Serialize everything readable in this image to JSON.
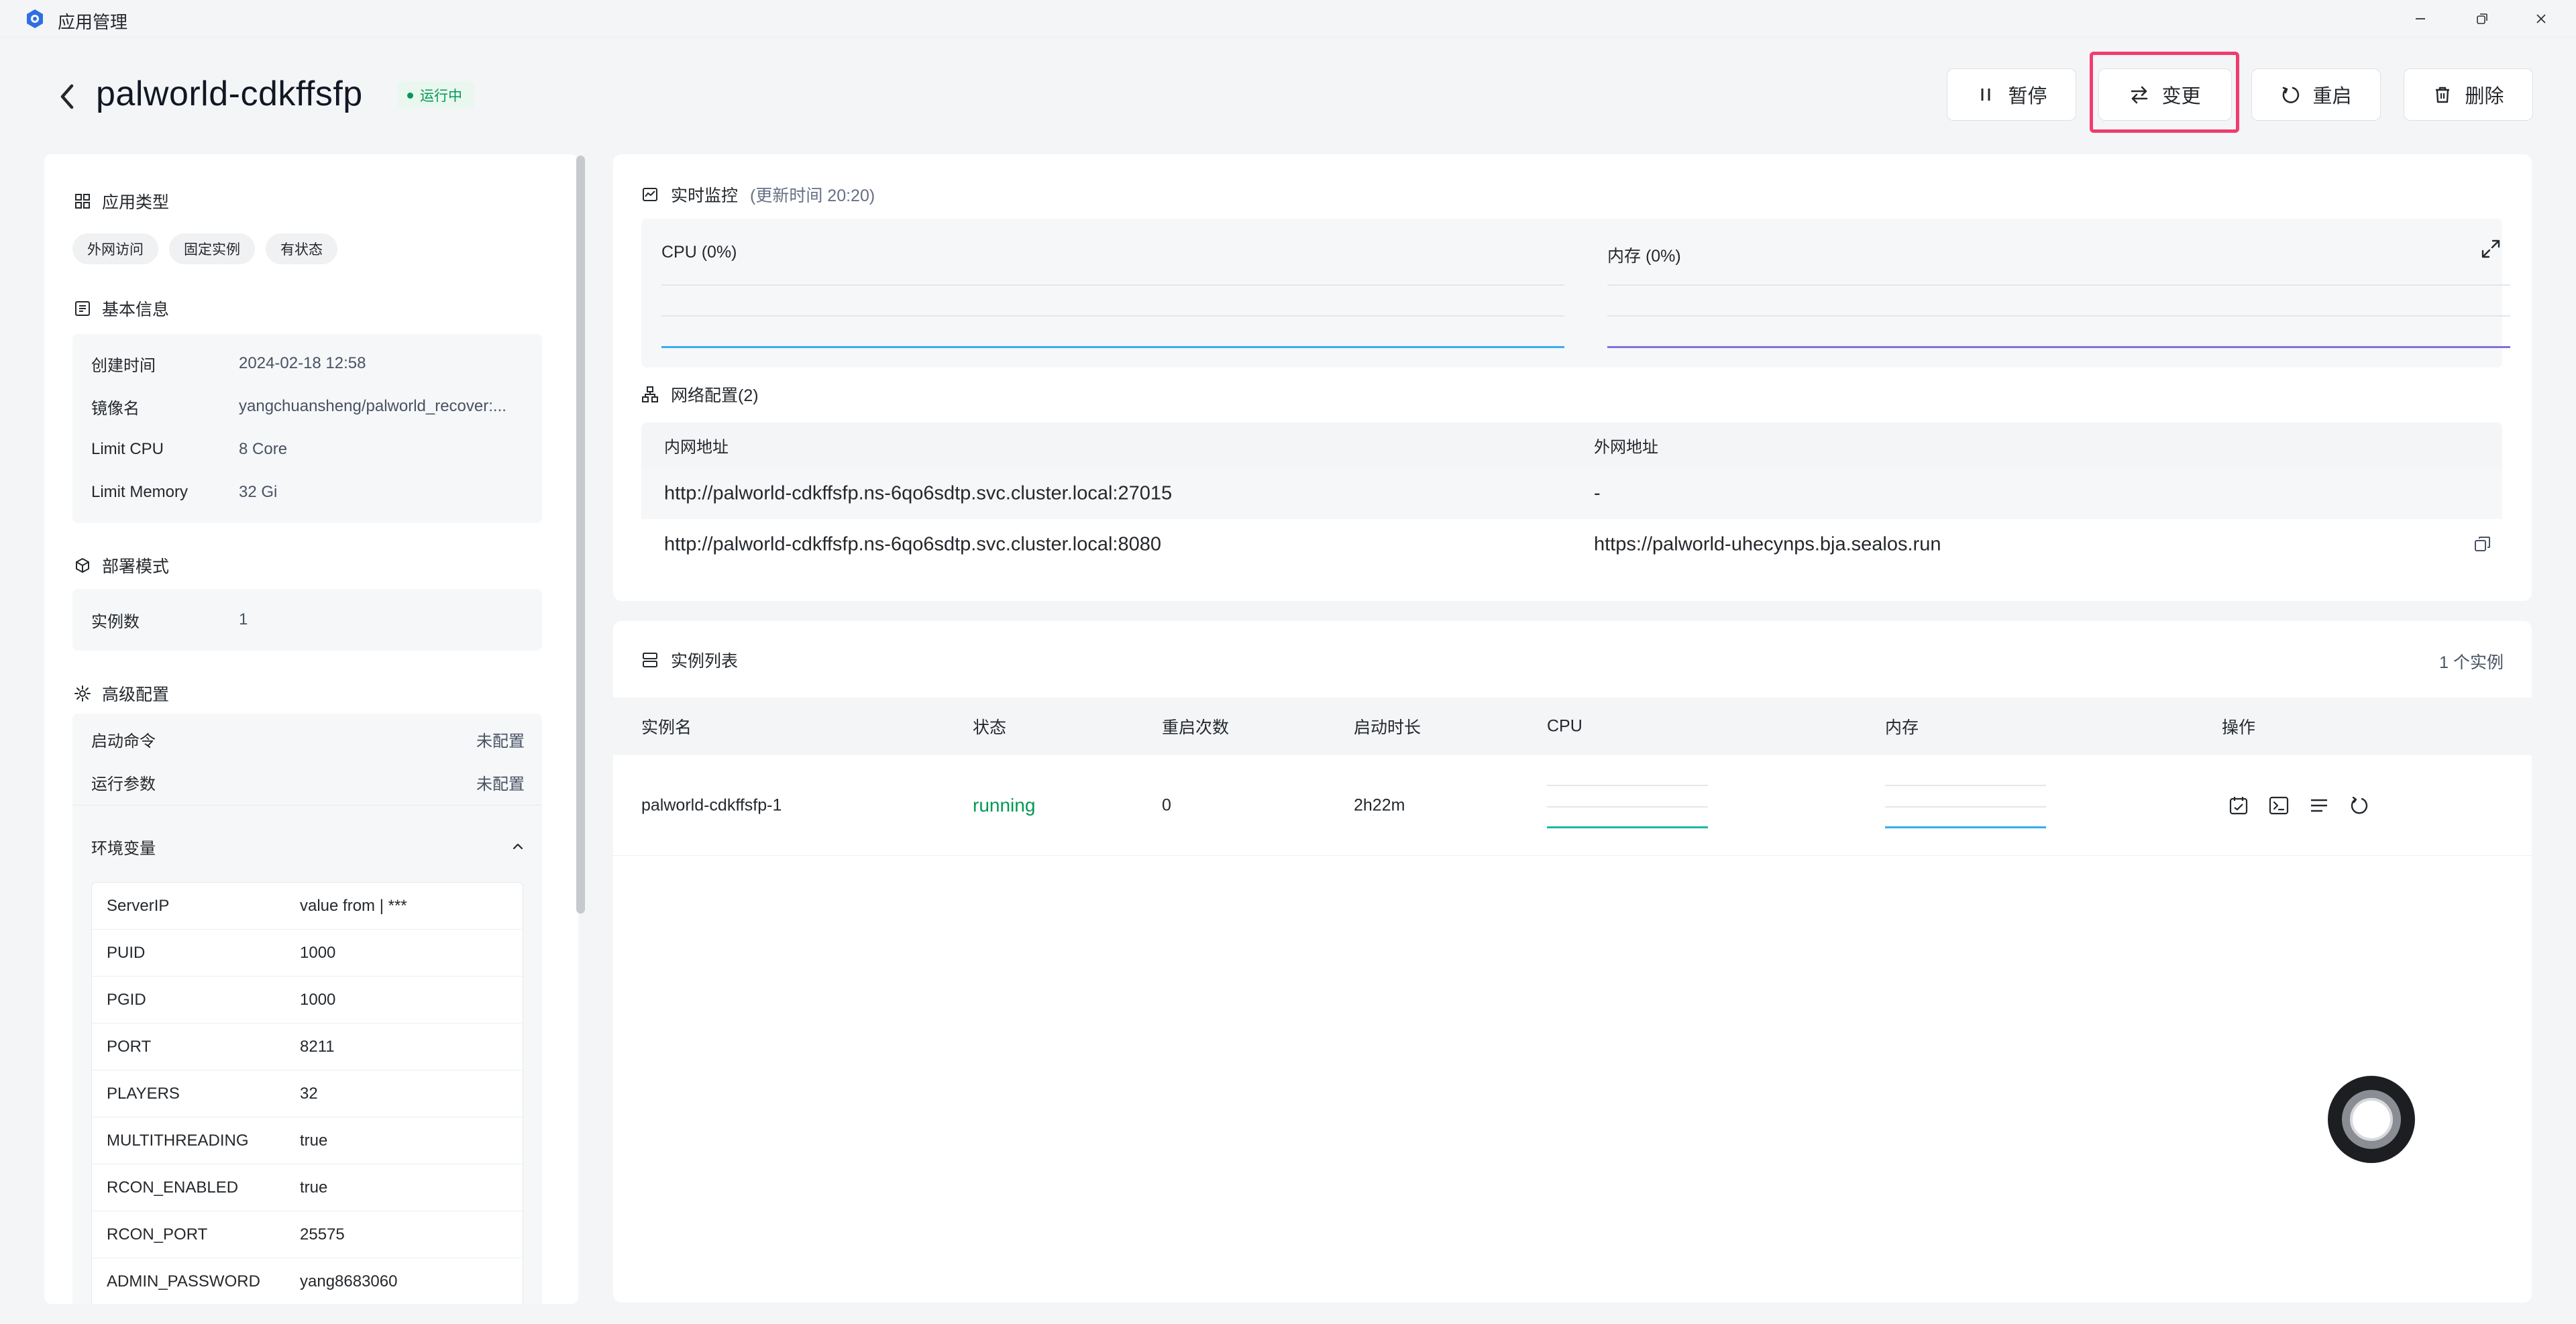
{
  "window": {
    "title": "应用管理",
    "icon": "settings-gear-logo-icon"
  },
  "header": {
    "app_name": "palworld-cdkffsfp",
    "status": "运行中",
    "buttons": {
      "pause": "暂停",
      "change": "变更",
      "restart": "重启",
      "delete": "删除"
    }
  },
  "left": {
    "app_type": {
      "title": "应用类型",
      "tags": [
        "外网访问",
        "固定实例",
        "有状态"
      ]
    },
    "basic_info": {
      "title": "基本信息",
      "rows": [
        {
          "k": "创建时间",
          "v": "2024-02-18 12:58"
        },
        {
          "k": "镜像名",
          "v": "yangchuansheng/palworld_recover:..."
        },
        {
          "k": "Limit CPU",
          "v": "8 Core"
        },
        {
          "k": "Limit Memory",
          "v": "32 Gi"
        }
      ]
    },
    "deploy_mode": {
      "title": "部署模式",
      "rows": [
        {
          "k": "实例数",
          "v": "1"
        }
      ]
    },
    "advanced": {
      "title": "高级配置",
      "rows": [
        {
          "k": "启动命令",
          "v": "未配置"
        },
        {
          "k": "运行参数",
          "v": "未配置"
        }
      ],
      "env_title": "环境变量",
      "env": [
        {
          "k": "ServerIP",
          "v": "value from | ***"
        },
        {
          "k": "PUID",
          "v": "1000"
        },
        {
          "k": "PGID",
          "v": "1000"
        },
        {
          "k": "PORT",
          "v": "8211"
        },
        {
          "k": "PLAYERS",
          "v": "32"
        },
        {
          "k": "MULTITHREADING",
          "v": "true"
        },
        {
          "k": "RCON_ENABLED",
          "v": "true"
        },
        {
          "k": "RCON_PORT",
          "v": "25575"
        },
        {
          "k": "ADMIN_PASSWORD",
          "v": "yang8683060"
        }
      ]
    }
  },
  "monitor": {
    "title": "实时监控",
    "updated": "(更新时间  20:20)",
    "cpu_label": "CPU  (0%)",
    "mem_label": "内存  (0%)",
    "cpu_color": "#36ADEF",
    "mem_color": "#8172D8"
  },
  "network": {
    "title": "网络配置(2)",
    "headers": [
      "内网地址",
      "外网地址"
    ],
    "rows": [
      {
        "internal": "http://palworld-cdkffsfp.ns-6qo6sdtp.svc.cluster.local:27015",
        "external": "-"
      },
      {
        "internal": "http://palworld-cdkffsfp.ns-6qo6sdtp.svc.cluster.local:8080",
        "external": "https://palworld-uhecynps.bja.sealos.run"
      }
    ]
  },
  "instances": {
    "title": "实例列表",
    "count": "1 个实例",
    "headers": [
      "实例名",
      "状态",
      "重启次数",
      "启动时长",
      "CPU",
      "内存",
      "操作"
    ],
    "rows": [
      {
        "name": "palworld-cdkffsfp-1",
        "status": "running",
        "restarts": "0",
        "uptime": "2h22m"
      }
    ]
  }
}
